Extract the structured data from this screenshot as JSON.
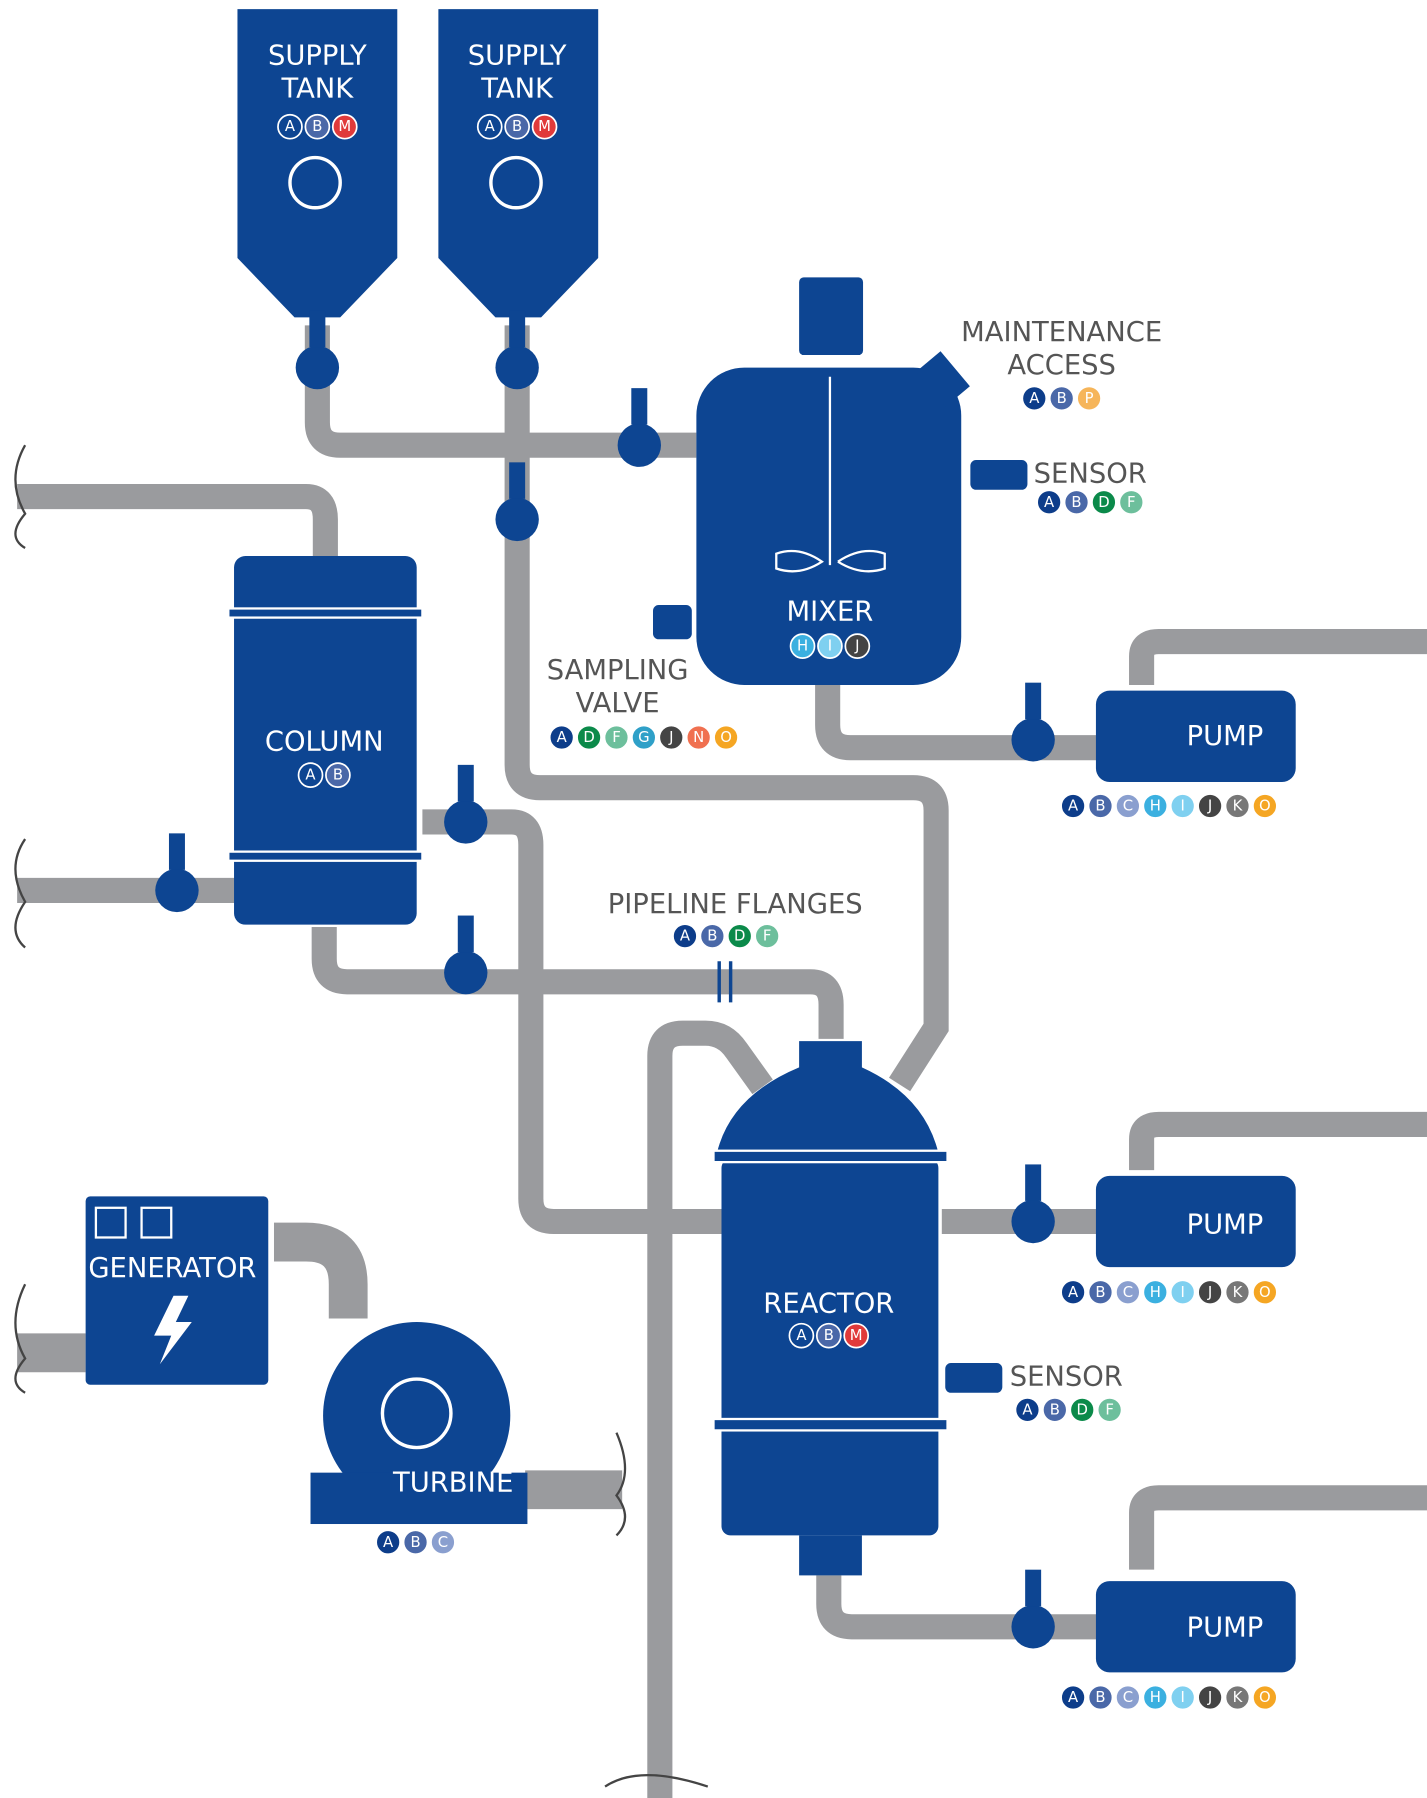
{
  "components": [
    {
      "label": [
        "SUPPLY",
        "TANK"
      ],
      "badges": [
        {
          "letter": "A",
          "color": "#0d4592"
        },
        {
          "letter": "B",
          "color": "#4a68a8"
        },
        {
          "letter": "M",
          "color": "#e03a3a"
        }
      ]
    },
    {
      "label": [
        "SUPPLY",
        "TANK"
      ],
      "badges": [
        {
          "letter": "A",
          "color": "#0d4592"
        },
        {
          "letter": "B",
          "color": "#4a68a8"
        },
        {
          "letter": "M",
          "color": "#e03a3a"
        }
      ]
    },
    {
      "label": [
        "MAINTENANCE",
        "ACCESS"
      ],
      "badges": [
        {
          "letter": "A",
          "color": "#0d3d8a"
        },
        {
          "letter": "B",
          "color": "#4a68a8"
        },
        {
          "letter": "P",
          "color": "#f6b55a"
        }
      ]
    },
    {
      "label": [
        "SENSOR"
      ],
      "badges": [
        {
          "letter": "A",
          "color": "#0d3d8a"
        },
        {
          "letter": "B",
          "color": "#4a68a8"
        },
        {
          "letter": "D",
          "color": "#0b8a4a"
        },
        {
          "letter": "F",
          "color": "#6dbf9c"
        }
      ]
    },
    {
      "label": [
        "MIXER"
      ],
      "badges": [
        {
          "letter": "H",
          "color": "#3bb0e0"
        },
        {
          "letter": "I",
          "color": "#7fd0f0"
        },
        {
          "letter": "J",
          "color": "#444444"
        }
      ]
    },
    {
      "label": [
        "SAMPLING",
        "VALVE"
      ],
      "badges": [
        {
          "letter": "A",
          "color": "#0d3d8a"
        },
        {
          "letter": "D",
          "color": "#0b8a4a"
        },
        {
          "letter": "F",
          "color": "#6dbf9c"
        },
        {
          "letter": "G",
          "color": "#2fa0c8"
        },
        {
          "letter": "J",
          "color": "#444444"
        },
        {
          "letter": "N",
          "color": "#f07050"
        },
        {
          "letter": "O",
          "color": "#f5a623"
        }
      ]
    },
    {
      "label": [
        "COLUMN"
      ],
      "badges": [
        {
          "letter": "A",
          "color": "#0d4592"
        },
        {
          "letter": "B",
          "color": "#4a68a8"
        }
      ]
    },
    {
      "label": [
        "PUMP"
      ],
      "badges": [
        {
          "letter": "A",
          "color": "#0d3d8a"
        },
        {
          "letter": "B",
          "color": "#4a68a8"
        },
        {
          "letter": "C",
          "color": "#8a9fcf"
        },
        {
          "letter": "H",
          "color": "#3bb0e0"
        },
        {
          "letter": "I",
          "color": "#7fd0f0"
        },
        {
          "letter": "J",
          "color": "#444444"
        },
        {
          "letter": "K",
          "color": "#777777"
        },
        {
          "letter": "O",
          "color": "#f5a623"
        }
      ]
    },
    {
      "label": [
        "PIPELINE FLANGES"
      ],
      "badges": [
        {
          "letter": "A",
          "color": "#0d3d8a"
        },
        {
          "letter": "B",
          "color": "#4a68a8"
        },
        {
          "letter": "D",
          "color": "#0b8a4a"
        },
        {
          "letter": "F",
          "color": "#6dbf9c"
        }
      ]
    },
    {
      "label": [
        "PUMP"
      ],
      "badges": [
        {
          "letter": "A",
          "color": "#0d3d8a"
        },
        {
          "letter": "B",
          "color": "#4a68a8"
        },
        {
          "letter": "C",
          "color": "#8a9fcf"
        },
        {
          "letter": "H",
          "color": "#3bb0e0"
        },
        {
          "letter": "I",
          "color": "#7fd0f0"
        },
        {
          "letter": "J",
          "color": "#444444"
        },
        {
          "letter": "K",
          "color": "#777777"
        },
        {
          "letter": "O",
          "color": "#f5a623"
        }
      ]
    },
    {
      "label": [
        "GENERATOR"
      ],
      "badges": []
    },
    {
      "label": [
        "REACTOR"
      ],
      "badges": [
        {
          "letter": "A",
          "color": "#0d4592"
        },
        {
          "letter": "B",
          "color": "#4a68a8"
        },
        {
          "letter": "M",
          "color": "#e03a3a"
        }
      ]
    },
    {
      "label": [
        "SENSOR"
      ],
      "badges": [
        {
          "letter": "A",
          "color": "#0d3d8a"
        },
        {
          "letter": "B",
          "color": "#4a68a8"
        },
        {
          "letter": "D",
          "color": "#0b8a4a"
        },
        {
          "letter": "F",
          "color": "#6dbf9c"
        }
      ]
    },
    {
      "label": [
        "TURBINE"
      ],
      "badges": [
        {
          "letter": "A",
          "color": "#0d3d8a"
        },
        {
          "letter": "B",
          "color": "#4a68a8"
        },
        {
          "letter": "C",
          "color": "#8a9fcf"
        }
      ]
    },
    {
      "label": [
        "PUMP"
      ],
      "badges": [
        {
          "letter": "A",
          "color": "#0d3d8a"
        },
        {
          "letter": "B",
          "color": "#4a68a8"
        },
        {
          "letter": "C",
          "color": "#8a9fcf"
        },
        {
          "letter": "H",
          "color": "#3bb0e0"
        },
        {
          "letter": "I",
          "color": "#7fd0f0"
        },
        {
          "letter": "J",
          "color": "#444444"
        },
        {
          "letter": "K",
          "color": "#777777"
        },
        {
          "letter": "O",
          "color": "#f5a623"
        }
      ]
    }
  ]
}
